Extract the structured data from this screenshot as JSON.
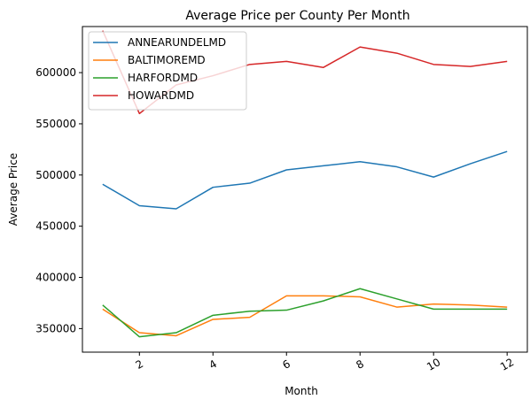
{
  "chart_data": {
    "type": "line",
    "title": "Average Price per County Per Month",
    "xlabel": "Month",
    "ylabel": "Average Price",
    "x": [
      1,
      2,
      3,
      4,
      5,
      6,
      7,
      8,
      9,
      10,
      11,
      12
    ],
    "xlim": [
      0.45,
      12.55
    ],
    "ylim": [
      327000,
      645000
    ],
    "x_ticks": [
      2,
      4,
      6,
      8,
      10,
      12
    ],
    "x_tick_labels": [
      "2",
      "4",
      "6",
      "8",
      "10",
      "12"
    ],
    "y_ticks": [
      350000,
      400000,
      450000,
      500000,
      550000,
      600000
    ],
    "y_tick_labels": [
      "350000",
      "400000",
      "450000",
      "500000",
      "550000",
      "600000"
    ],
    "x_tick_rotation": 30,
    "grid": false,
    "legend_position": "top-left",
    "series": [
      {
        "name": "ANNEARUNDELMD",
        "color": "#1f77b4",
        "values": [
          491000,
          470000,
          467000,
          488000,
          492000,
          505000,
          509000,
          513000,
          508000,
          498000,
          511000,
          523000
        ]
      },
      {
        "name": "BALTIMOREMD",
        "color": "#ff7f0e",
        "values": [
          369000,
          346000,
          343000,
          359000,
          361000,
          382000,
          382000,
          381000,
          371000,
          374000,
          373000,
          371000
        ]
      },
      {
        "name": "HARFORDMD",
        "color": "#2ca02c",
        "values": [
          373000,
          342000,
          346000,
          363000,
          367000,
          368000,
          377000,
          389000,
          379000,
          369000,
          369000,
          369000
        ]
      },
      {
        "name": "HOWARDMD",
        "color": "#d62728",
        "values": [
          641000,
          560000,
          588000,
          597000,
          608000,
          611000,
          605000,
          625000,
          619000,
          608000,
          606000,
          611000
        ]
      }
    ]
  }
}
